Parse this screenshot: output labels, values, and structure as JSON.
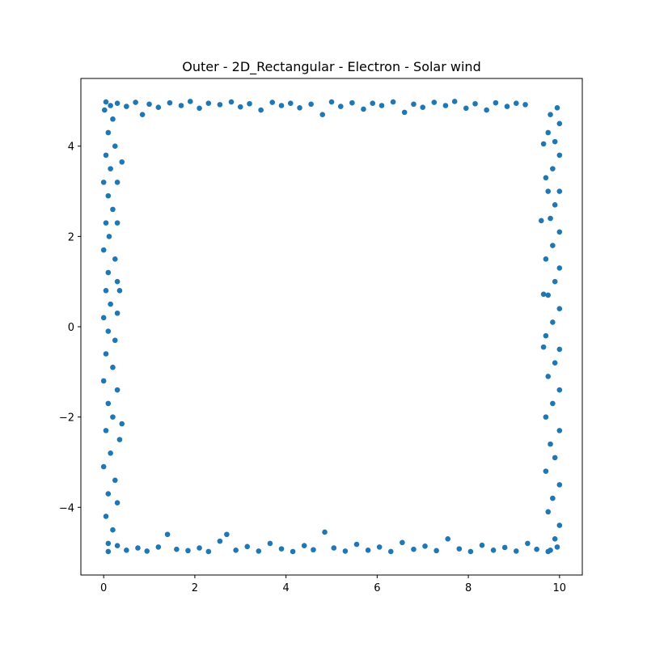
{
  "chart_data": {
    "type": "scatter",
    "title": "Outer - 2D_Rectangular - Electron - Solar wind",
    "color": "#1f77b4",
    "xlim": [
      -0.5,
      10.5
    ],
    "ylim": [
      -5.5,
      5.5
    ],
    "xticks": [
      0,
      2,
      4,
      6,
      8,
      10
    ],
    "yticks": [
      {
        "value": -4,
        "label": "−4"
      },
      {
        "value": -2,
        "label": "−2"
      },
      0,
      2,
      4
    ],
    "x": [
      0.05,
      0.15,
      0.3,
      0.5,
      0.7,
      0.85,
      1.0,
      1.2,
      1.45,
      1.7,
      1.9,
      2.1,
      2.3,
      2.55,
      2.8,
      3.0,
      3.2,
      3.45,
      3.7,
      3.9,
      4.1,
      4.3,
      4.55,
      4.8,
      5.0,
      5.2,
      5.45,
      5.7,
      5.9,
      6.1,
      6.35,
      6.6,
      6.8,
      7.0,
      7.25,
      7.5,
      7.7,
      7.95,
      8.15,
      8.4,
      8.6,
      8.85,
      9.05,
      9.25,
      0.1,
      0.3,
      0.5,
      0.75,
      0.95,
      1.2,
      1.4,
      1.6,
      1.85,
      2.1,
      2.3,
      2.55,
      2.7,
      2.9,
      3.15,
      3.4,
      3.65,
      3.9,
      4.15,
      4.4,
      4.6,
      4.85,
      5.05,
      5.3,
      5.55,
      5.8,
      6.05,
      6.3,
      6.55,
      6.8,
      7.05,
      7.3,
      7.55,
      7.8,
      8.05,
      8.3,
      8.55,
      8.8,
      9.05,
      9.3,
      9.5,
      9.75,
      9.95,
      0.02,
      0.2,
      0.1,
      0.25,
      0.05,
      0.4,
      0.15,
      0.0,
      0.3,
      0.1,
      0.2,
      0.05,
      0.3,
      0.12,
      0.0,
      0.25,
      0.1,
      0.3,
      0.05,
      0.35,
      0.15,
      0.0,
      0.3,
      0.1,
      0.25,
      0.05,
      0.2,
      0.0,
      0.3,
      0.1,
      0.4,
      0.2,
      0.05,
      0.35,
      0.15,
      0.0,
      0.25,
      0.1,
      0.3,
      0.05,
      0.2,
      0.1,
      9.95,
      9.8,
      10.0,
      9.75,
      9.9,
      9.65,
      10.0,
      9.85,
      9.7,
      10.0,
      9.75,
      9.9,
      9.8,
      9.6,
      10.0,
      9.85,
      9.7,
      10.0,
      9.9,
      9.75,
      9.65,
      10.0,
      9.85,
      9.7,
      9.65,
      10.0,
      9.9,
      9.75,
      10.0,
      9.85,
      9.7,
      10.0,
      9.8,
      9.9,
      9.7,
      10.0,
      9.85,
      9.75,
      10.0,
      9.9,
      9.8
    ],
    "values": [
      4.98,
      4.9,
      4.95,
      4.88,
      4.97,
      4.7,
      4.93,
      4.86,
      4.96,
      4.9,
      4.99,
      4.84,
      4.95,
      4.92,
      4.98,
      4.87,
      4.94,
      4.8,
      4.97,
      4.9,
      4.95,
      4.85,
      4.93,
      4.7,
      4.98,
      4.88,
      4.96,
      4.82,
      4.95,
      4.9,
      4.98,
      4.75,
      4.93,
      4.86,
      4.97,
      4.9,
      4.99,
      4.84,
      4.94,
      4.8,
      4.96,
      4.88,
      4.95,
      4.92,
      -4.98,
      -4.85,
      -4.95,
      -4.9,
      -4.97,
      -4.88,
      -4.6,
      -4.93,
      -4.96,
      -4.9,
      -4.98,
      -4.75,
      -4.6,
      -4.95,
      -4.87,
      -4.97,
      -4.8,
      -4.92,
      -4.98,
      -4.85,
      -4.94,
      -4.55,
      -4.9,
      -4.97,
      -4.82,
      -4.95,
      -4.88,
      -4.98,
      -4.78,
      -4.93,
      -4.86,
      -4.96,
      -4.7,
      -4.92,
      -4.98,
      -4.84,
      -4.95,
      -4.89,
      -4.97,
      -4.8,
      -4.93,
      -4.98,
      -4.88,
      4.8,
      4.6,
      4.3,
      4.0,
      3.8,
      3.65,
      3.5,
      3.2,
      3.2,
      2.9,
      2.6,
      2.3,
      2.3,
      2.0,
      1.7,
      1.5,
      1.2,
      1.0,
      0.8,
      0.8,
      0.5,
      0.2,
      0.3,
      -0.1,
      -0.3,
      -0.6,
      -0.9,
      -1.2,
      -1.4,
      -1.7,
      -2.15,
      -2.0,
      -2.3,
      -2.5,
      -2.8,
      -3.1,
      -3.4,
      -3.7,
      -3.9,
      -4.2,
      -4.5,
      -4.8,
      4.85,
      4.7,
      4.5,
      4.3,
      4.1,
      4.05,
      3.8,
      3.5,
      3.3,
      3.0,
      3.0,
      2.7,
      2.4,
      2.35,
      2.1,
      1.8,
      1.5,
      1.3,
      1.0,
      0.7,
      0.72,
      0.4,
      0.1,
      -0.2,
      -0.45,
      -0.5,
      -0.8,
      -1.1,
      -1.4,
      -1.7,
      -2.0,
      -2.3,
      -2.6,
      -2.9,
      -3.2,
      -3.5,
      -3.8,
      -4.1,
      -4.4,
      -4.7,
      -4.95
    ]
  }
}
